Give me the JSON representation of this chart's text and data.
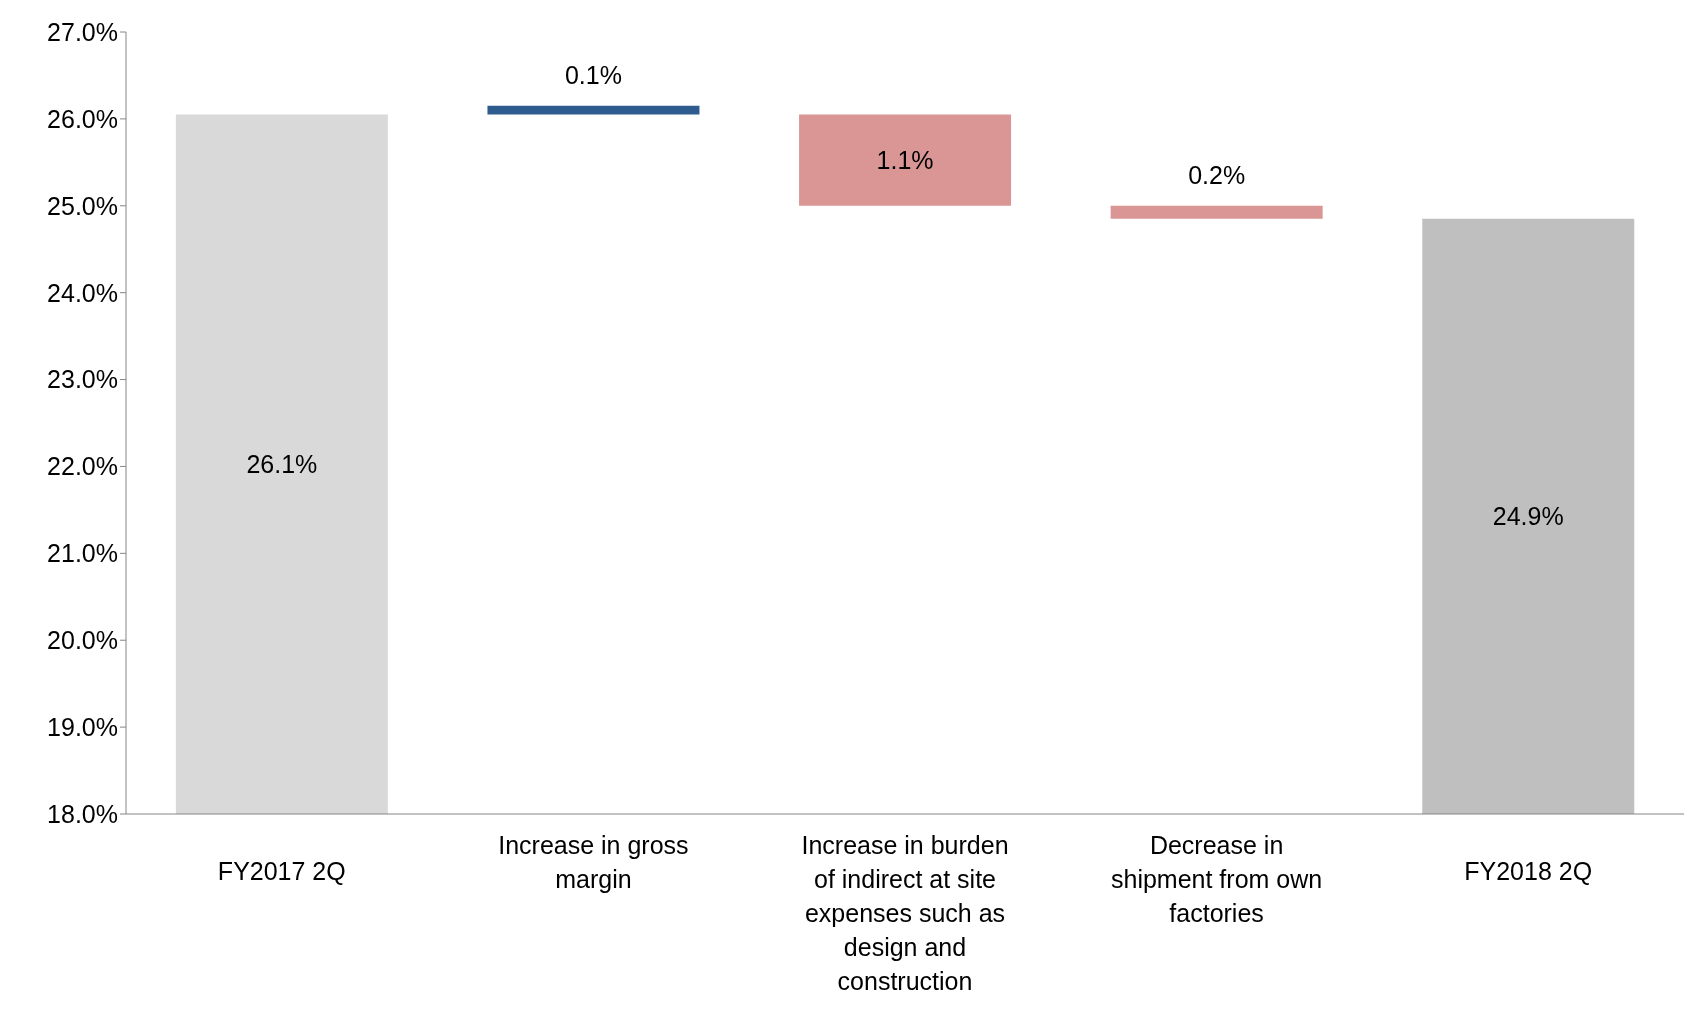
{
  "chart_data": {
    "type": "bar",
    "categories": [
      "FY2017 2Q",
      "Increase in gross margin",
      "Increase in burden of indirect at site expenses such as design and construction",
      "Decrease in shipment from own factories",
      "FY2018 2Q"
    ],
    "base": [
      18,
      26.05,
      25.0,
      24.85,
      18
    ],
    "values": [
      8.05,
      0.1,
      1.05,
      0.15,
      6.85
    ],
    "value_labels": [
      "26.1%",
      "0.1%",
      "1.1%",
      "0.2%",
      "24.9%"
    ],
    "colors": [
      "#d9d9d9",
      "#2f5c8f",
      "#d99694",
      "#d99694",
      "#bfbfbf"
    ],
    "ylim": [
      18,
      27
    ],
    "yticks": [
      {
        "value": 18,
        "label": "18.0%"
      },
      {
        "value": 19,
        "label": "19.0%"
      },
      {
        "value": 20,
        "label": "20.0%"
      },
      {
        "value": 21,
        "label": "21.0%"
      },
      {
        "value": 22,
        "label": "22.0%"
      },
      {
        "value": 23,
        "label": "23.0%"
      },
      {
        "value": 24,
        "label": "24.0%"
      },
      {
        "value": 25,
        "label": "25.0%"
      },
      {
        "value": 26,
        "label": "26.0%"
      },
      {
        "value": 27,
        "label": "27.0%"
      }
    ],
    "grid": false,
    "legend": false
  }
}
